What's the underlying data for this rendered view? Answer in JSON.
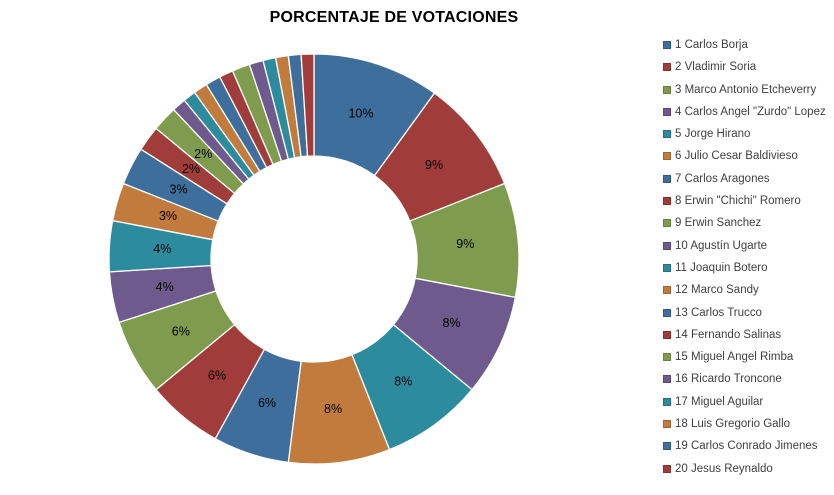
{
  "chart_data": {
    "type": "pie",
    "subtype": "donut",
    "title": "PORCENTAJE DE VOTACIONES",
    "hole_ratio": 0.5,
    "legend_position": "right",
    "background": "#FFFFFF",
    "label_color": "#000000",
    "legend_text_color": "#3F3F3F",
    "palette": [
      "#3E6E9B",
      "#A03D3A",
      "#7E9B4E",
      "#6E5A8D",
      "#2C8C9E",
      "#C17B3D"
    ],
    "slices": [
      {
        "legend_label": "1 Carlos Borja",
        "value_pct": 10,
        "data_label": "10%"
      },
      {
        "legend_label": "2 Vladimir Soria",
        "value_pct": 9,
        "data_label": "9%"
      },
      {
        "legend_label": "3 Marco Antonio Etcheverry",
        "value_pct": 9,
        "data_label": "9%"
      },
      {
        "legend_label": "4 Carlos Angel \"Zurdo\" Lopez",
        "value_pct": 8,
        "data_label": "8%"
      },
      {
        "legend_label": "5 Jorge Hirano",
        "value_pct": 8,
        "data_label": "8%"
      },
      {
        "legend_label": "6 Julio Cesar Baldivieso",
        "value_pct": 8,
        "data_label": "8%"
      },
      {
        "legend_label": "7 Carlos Aragones",
        "value_pct": 6,
        "data_label": "6%"
      },
      {
        "legend_label": "8 Erwin \"Chichi\" Romero",
        "value_pct": 6,
        "data_label": "6%"
      },
      {
        "legend_label": "9 Erwin Sanchez",
        "value_pct": 6,
        "data_label": "6%"
      },
      {
        "legend_label": "10 Agustín Ugarte",
        "value_pct": 4,
        "data_label": "4%"
      },
      {
        "legend_label": "11 Joaquin Botero",
        "value_pct": 4,
        "data_label": "4%"
      },
      {
        "legend_label": "12 Marco Sandy",
        "value_pct": 3,
        "data_label": "3%"
      },
      {
        "legend_label": "13 Carlos Trucco",
        "value_pct": 3,
        "data_label": "3%"
      },
      {
        "legend_label": "14 Fernando Salinas",
        "value_pct": 2,
        "data_label": "2%"
      },
      {
        "legend_label": "15 Miguel Angel Rimba",
        "value_pct": 2,
        "data_label": "2%"
      },
      {
        "legend_label": "16 Ricardo Troncone",
        "value_pct": 1.1,
        "data_label": null
      },
      {
        "legend_label": "17 Miguel Aguilar",
        "value_pct": 1.0,
        "data_label": null
      },
      {
        "legend_label": "18 Luis Gregorio Gallo",
        "value_pct": 1.1,
        "data_label": null
      },
      {
        "legend_label": "19 Carlos Conrado Jimenes",
        "value_pct": 1.2,
        "data_label": null
      },
      {
        "legend_label": "20 Jesus Reynaldo",
        "value_pct": 1.1,
        "data_label": null
      },
      {
        "legend_label": null,
        "value_pct": 1.4,
        "data_label": null
      },
      {
        "legend_label": null,
        "value_pct": 1.1,
        "data_label": null
      },
      {
        "legend_label": null,
        "value_pct": 1.0,
        "data_label": null
      },
      {
        "legend_label": null,
        "value_pct": 1.0,
        "data_label": null
      },
      {
        "legend_label": null,
        "value_pct": 1.0,
        "data_label": null
      },
      {
        "legend_label": null,
        "value_pct": 1.0,
        "data_label": null
      }
    ]
  }
}
